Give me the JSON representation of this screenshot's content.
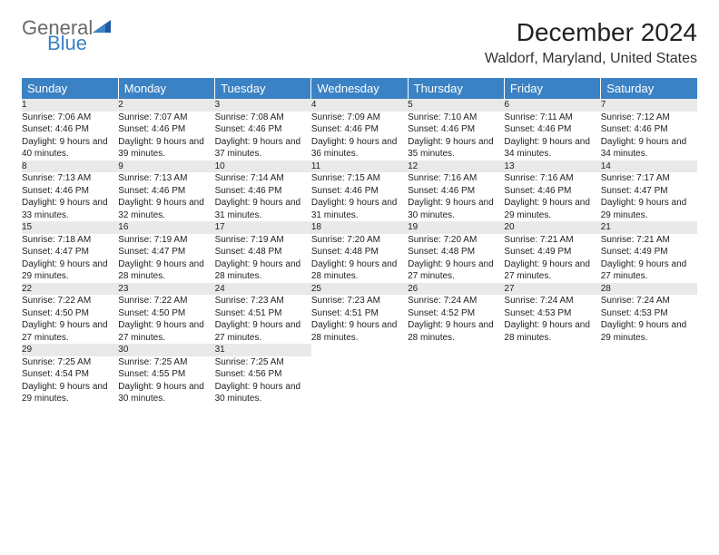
{
  "logo": {
    "general": "General",
    "blue": "Blue"
  },
  "title": "December 2024",
  "location": "Waldorf, Maryland, United States",
  "colors": {
    "header_bg": "#3b82c4",
    "header_text": "#ffffff",
    "daynum_bg": "#e9e9e9",
    "daynum_border": "#3b6fa0",
    "logo_gray": "#6b6b6b",
    "logo_blue": "#3b82c4"
  },
  "weekdays": [
    "Sunday",
    "Monday",
    "Tuesday",
    "Wednesday",
    "Thursday",
    "Friday",
    "Saturday"
  ],
  "weeks": [
    [
      {
        "day": "1",
        "sunrise": "7:06 AM",
        "sunset": "4:46 PM",
        "daylight": "9 hours and 40 minutes."
      },
      {
        "day": "2",
        "sunrise": "7:07 AM",
        "sunset": "4:46 PM",
        "daylight": "9 hours and 39 minutes."
      },
      {
        "day": "3",
        "sunrise": "7:08 AM",
        "sunset": "4:46 PM",
        "daylight": "9 hours and 37 minutes."
      },
      {
        "day": "4",
        "sunrise": "7:09 AM",
        "sunset": "4:46 PM",
        "daylight": "9 hours and 36 minutes."
      },
      {
        "day": "5",
        "sunrise": "7:10 AM",
        "sunset": "4:46 PM",
        "daylight": "9 hours and 35 minutes."
      },
      {
        "day": "6",
        "sunrise": "7:11 AM",
        "sunset": "4:46 PM",
        "daylight": "9 hours and 34 minutes."
      },
      {
        "day": "7",
        "sunrise": "7:12 AM",
        "sunset": "4:46 PM",
        "daylight": "9 hours and 34 minutes."
      }
    ],
    [
      {
        "day": "8",
        "sunrise": "7:13 AM",
        "sunset": "4:46 PM",
        "daylight": "9 hours and 33 minutes."
      },
      {
        "day": "9",
        "sunrise": "7:13 AM",
        "sunset": "4:46 PM",
        "daylight": "9 hours and 32 minutes."
      },
      {
        "day": "10",
        "sunrise": "7:14 AM",
        "sunset": "4:46 PM",
        "daylight": "9 hours and 31 minutes."
      },
      {
        "day": "11",
        "sunrise": "7:15 AM",
        "sunset": "4:46 PM",
        "daylight": "9 hours and 31 minutes."
      },
      {
        "day": "12",
        "sunrise": "7:16 AM",
        "sunset": "4:46 PM",
        "daylight": "9 hours and 30 minutes."
      },
      {
        "day": "13",
        "sunrise": "7:16 AM",
        "sunset": "4:46 PM",
        "daylight": "9 hours and 29 minutes."
      },
      {
        "day": "14",
        "sunrise": "7:17 AM",
        "sunset": "4:47 PM",
        "daylight": "9 hours and 29 minutes."
      }
    ],
    [
      {
        "day": "15",
        "sunrise": "7:18 AM",
        "sunset": "4:47 PM",
        "daylight": "9 hours and 29 minutes."
      },
      {
        "day": "16",
        "sunrise": "7:19 AM",
        "sunset": "4:47 PM",
        "daylight": "9 hours and 28 minutes."
      },
      {
        "day": "17",
        "sunrise": "7:19 AM",
        "sunset": "4:48 PM",
        "daylight": "9 hours and 28 minutes."
      },
      {
        "day": "18",
        "sunrise": "7:20 AM",
        "sunset": "4:48 PM",
        "daylight": "9 hours and 28 minutes."
      },
      {
        "day": "19",
        "sunrise": "7:20 AM",
        "sunset": "4:48 PM",
        "daylight": "9 hours and 27 minutes."
      },
      {
        "day": "20",
        "sunrise": "7:21 AM",
        "sunset": "4:49 PM",
        "daylight": "9 hours and 27 minutes."
      },
      {
        "day": "21",
        "sunrise": "7:21 AM",
        "sunset": "4:49 PM",
        "daylight": "9 hours and 27 minutes."
      }
    ],
    [
      {
        "day": "22",
        "sunrise": "7:22 AM",
        "sunset": "4:50 PM",
        "daylight": "9 hours and 27 minutes."
      },
      {
        "day": "23",
        "sunrise": "7:22 AM",
        "sunset": "4:50 PM",
        "daylight": "9 hours and 27 minutes."
      },
      {
        "day": "24",
        "sunrise": "7:23 AM",
        "sunset": "4:51 PM",
        "daylight": "9 hours and 27 minutes."
      },
      {
        "day": "25",
        "sunrise": "7:23 AM",
        "sunset": "4:51 PM",
        "daylight": "9 hours and 28 minutes."
      },
      {
        "day": "26",
        "sunrise": "7:24 AM",
        "sunset": "4:52 PM",
        "daylight": "9 hours and 28 minutes."
      },
      {
        "day": "27",
        "sunrise": "7:24 AM",
        "sunset": "4:53 PM",
        "daylight": "9 hours and 28 minutes."
      },
      {
        "day": "28",
        "sunrise": "7:24 AM",
        "sunset": "4:53 PM",
        "daylight": "9 hours and 29 minutes."
      }
    ],
    [
      {
        "day": "29",
        "sunrise": "7:25 AM",
        "sunset": "4:54 PM",
        "daylight": "9 hours and 29 minutes."
      },
      {
        "day": "30",
        "sunrise": "7:25 AM",
        "sunset": "4:55 PM",
        "daylight": "9 hours and 30 minutes."
      },
      {
        "day": "31",
        "sunrise": "7:25 AM",
        "sunset": "4:56 PM",
        "daylight": "9 hours and 30 minutes."
      },
      null,
      null,
      null,
      null
    ]
  ]
}
